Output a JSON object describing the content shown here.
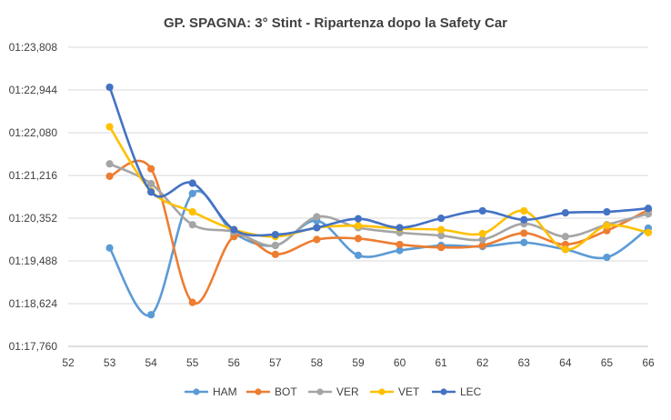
{
  "chart_data": {
    "type": "line",
    "title": "GP. SPAGNA: 3° Stint - Ripartenza dopo la Safety Car",
    "xlabel": "",
    "ylabel": "",
    "xlim": [
      52,
      66
    ],
    "x_ticks": [
      "52",
      "53",
      "54",
      "55",
      "56",
      "57",
      "58",
      "59",
      "60",
      "61",
      "62",
      "63",
      "64",
      "65",
      "66"
    ],
    "y_ticks": [
      "01:17,760",
      "01:18,624",
      "01:19,488",
      "01:20,352",
      "01:21,216",
      "01:22,080",
      "01:22,944",
      "01:23,808"
    ],
    "ylim_seconds": [
      77.76,
      83.808
    ],
    "y_unit": "lap time (mm:ss,sss)",
    "grid": "horizontal",
    "legend_position": "bottom",
    "x": [
      53,
      54,
      55,
      56,
      57,
      58,
      59,
      60,
      61,
      62,
      63,
      64,
      65,
      66
    ],
    "series": [
      {
        "name": "HAM",
        "color": "#5B9BD5",
        "values": [
          79.75,
          78.4,
          80.85,
          80.05,
          79.8,
          80.3,
          79.6,
          79.7,
          79.8,
          79.78,
          79.86,
          79.72,
          79.56,
          80.15
        ]
      },
      {
        "name": "BOT",
        "color": "#ED7D31",
        "values": [
          81.2,
          81.35,
          78.65,
          79.98,
          79.62,
          79.92,
          79.94,
          79.82,
          79.76,
          79.8,
          80.05,
          79.82,
          80.1,
          80.52
        ]
      },
      {
        "name": "VER",
        "color": "#A5A5A5",
        "values": [
          81.45,
          81.05,
          80.22,
          80.08,
          79.8,
          80.38,
          80.16,
          80.06,
          80.0,
          79.92,
          80.24,
          79.98,
          80.22,
          80.44
        ]
      },
      {
        "name": "VET",
        "color": "#FFC000",
        "values": [
          82.2,
          80.9,
          80.48,
          80.12,
          79.98,
          80.16,
          80.2,
          80.14,
          80.12,
          80.04,
          80.5,
          79.72,
          80.2,
          80.06
        ]
      },
      {
        "name": "LEC",
        "color": "#4472C4",
        "values": [
          83.0,
          80.88,
          81.06,
          80.12,
          80.02,
          80.16,
          80.34,
          80.16,
          80.35,
          80.5,
          80.32,
          80.46,
          80.48,
          80.55
        ]
      }
    ]
  }
}
